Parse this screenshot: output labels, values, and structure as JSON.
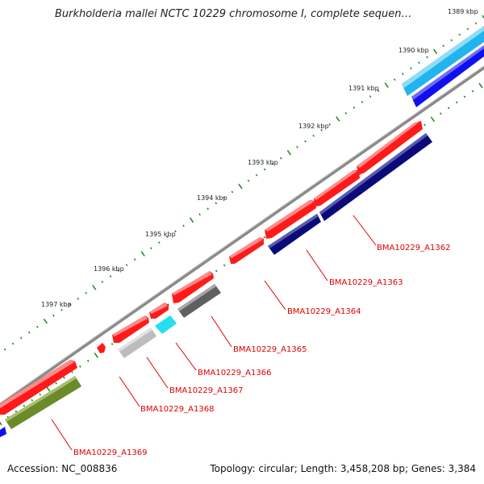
{
  "title": "Burkholderia mallei NCTC 10229 chromosome I, complete sequen…",
  "footer": {
    "accession": "Accession: NC_008836",
    "summary": "Topology: circular; Length: 3,458,208 bp; Genes: 3,384"
  },
  "ticks": [
    {
      "label": "1389 kbp"
    },
    {
      "label": "1390 kbp"
    },
    {
      "label": "1391 kbp"
    },
    {
      "label": "1392 kbp"
    },
    {
      "label": "1393 kbp"
    },
    {
      "label": "1394 kbp"
    },
    {
      "label": "1395 kbp"
    },
    {
      "label": "1396 kbp"
    },
    {
      "label": "1397 kbp"
    }
  ],
  "gene_labels": [
    {
      "label": "BMA10229_A1362"
    },
    {
      "label": "BMA10229_A1363"
    },
    {
      "label": "BMA10229_A1364"
    },
    {
      "label": "BMA10229_A1365"
    },
    {
      "label": "BMA10229_A1366"
    },
    {
      "label": "BMA10229_A1367"
    },
    {
      "label": "BMA10229_A1368"
    },
    {
      "label": "BMA10229_A1369"
    }
  ],
  "colors": {
    "cds": "#ff1a1a",
    "backbone": "#888888",
    "tick": "#2a8a2a",
    "label": "#dd0000",
    "navy": "#0a0a78",
    "blue": "#1010ee",
    "skyblue": "#22b4ee",
    "cyan": "#22e0ee",
    "olive": "#6b8a2a",
    "darkgray": "#606060",
    "lightgray": "#bdbdbd"
  }
}
